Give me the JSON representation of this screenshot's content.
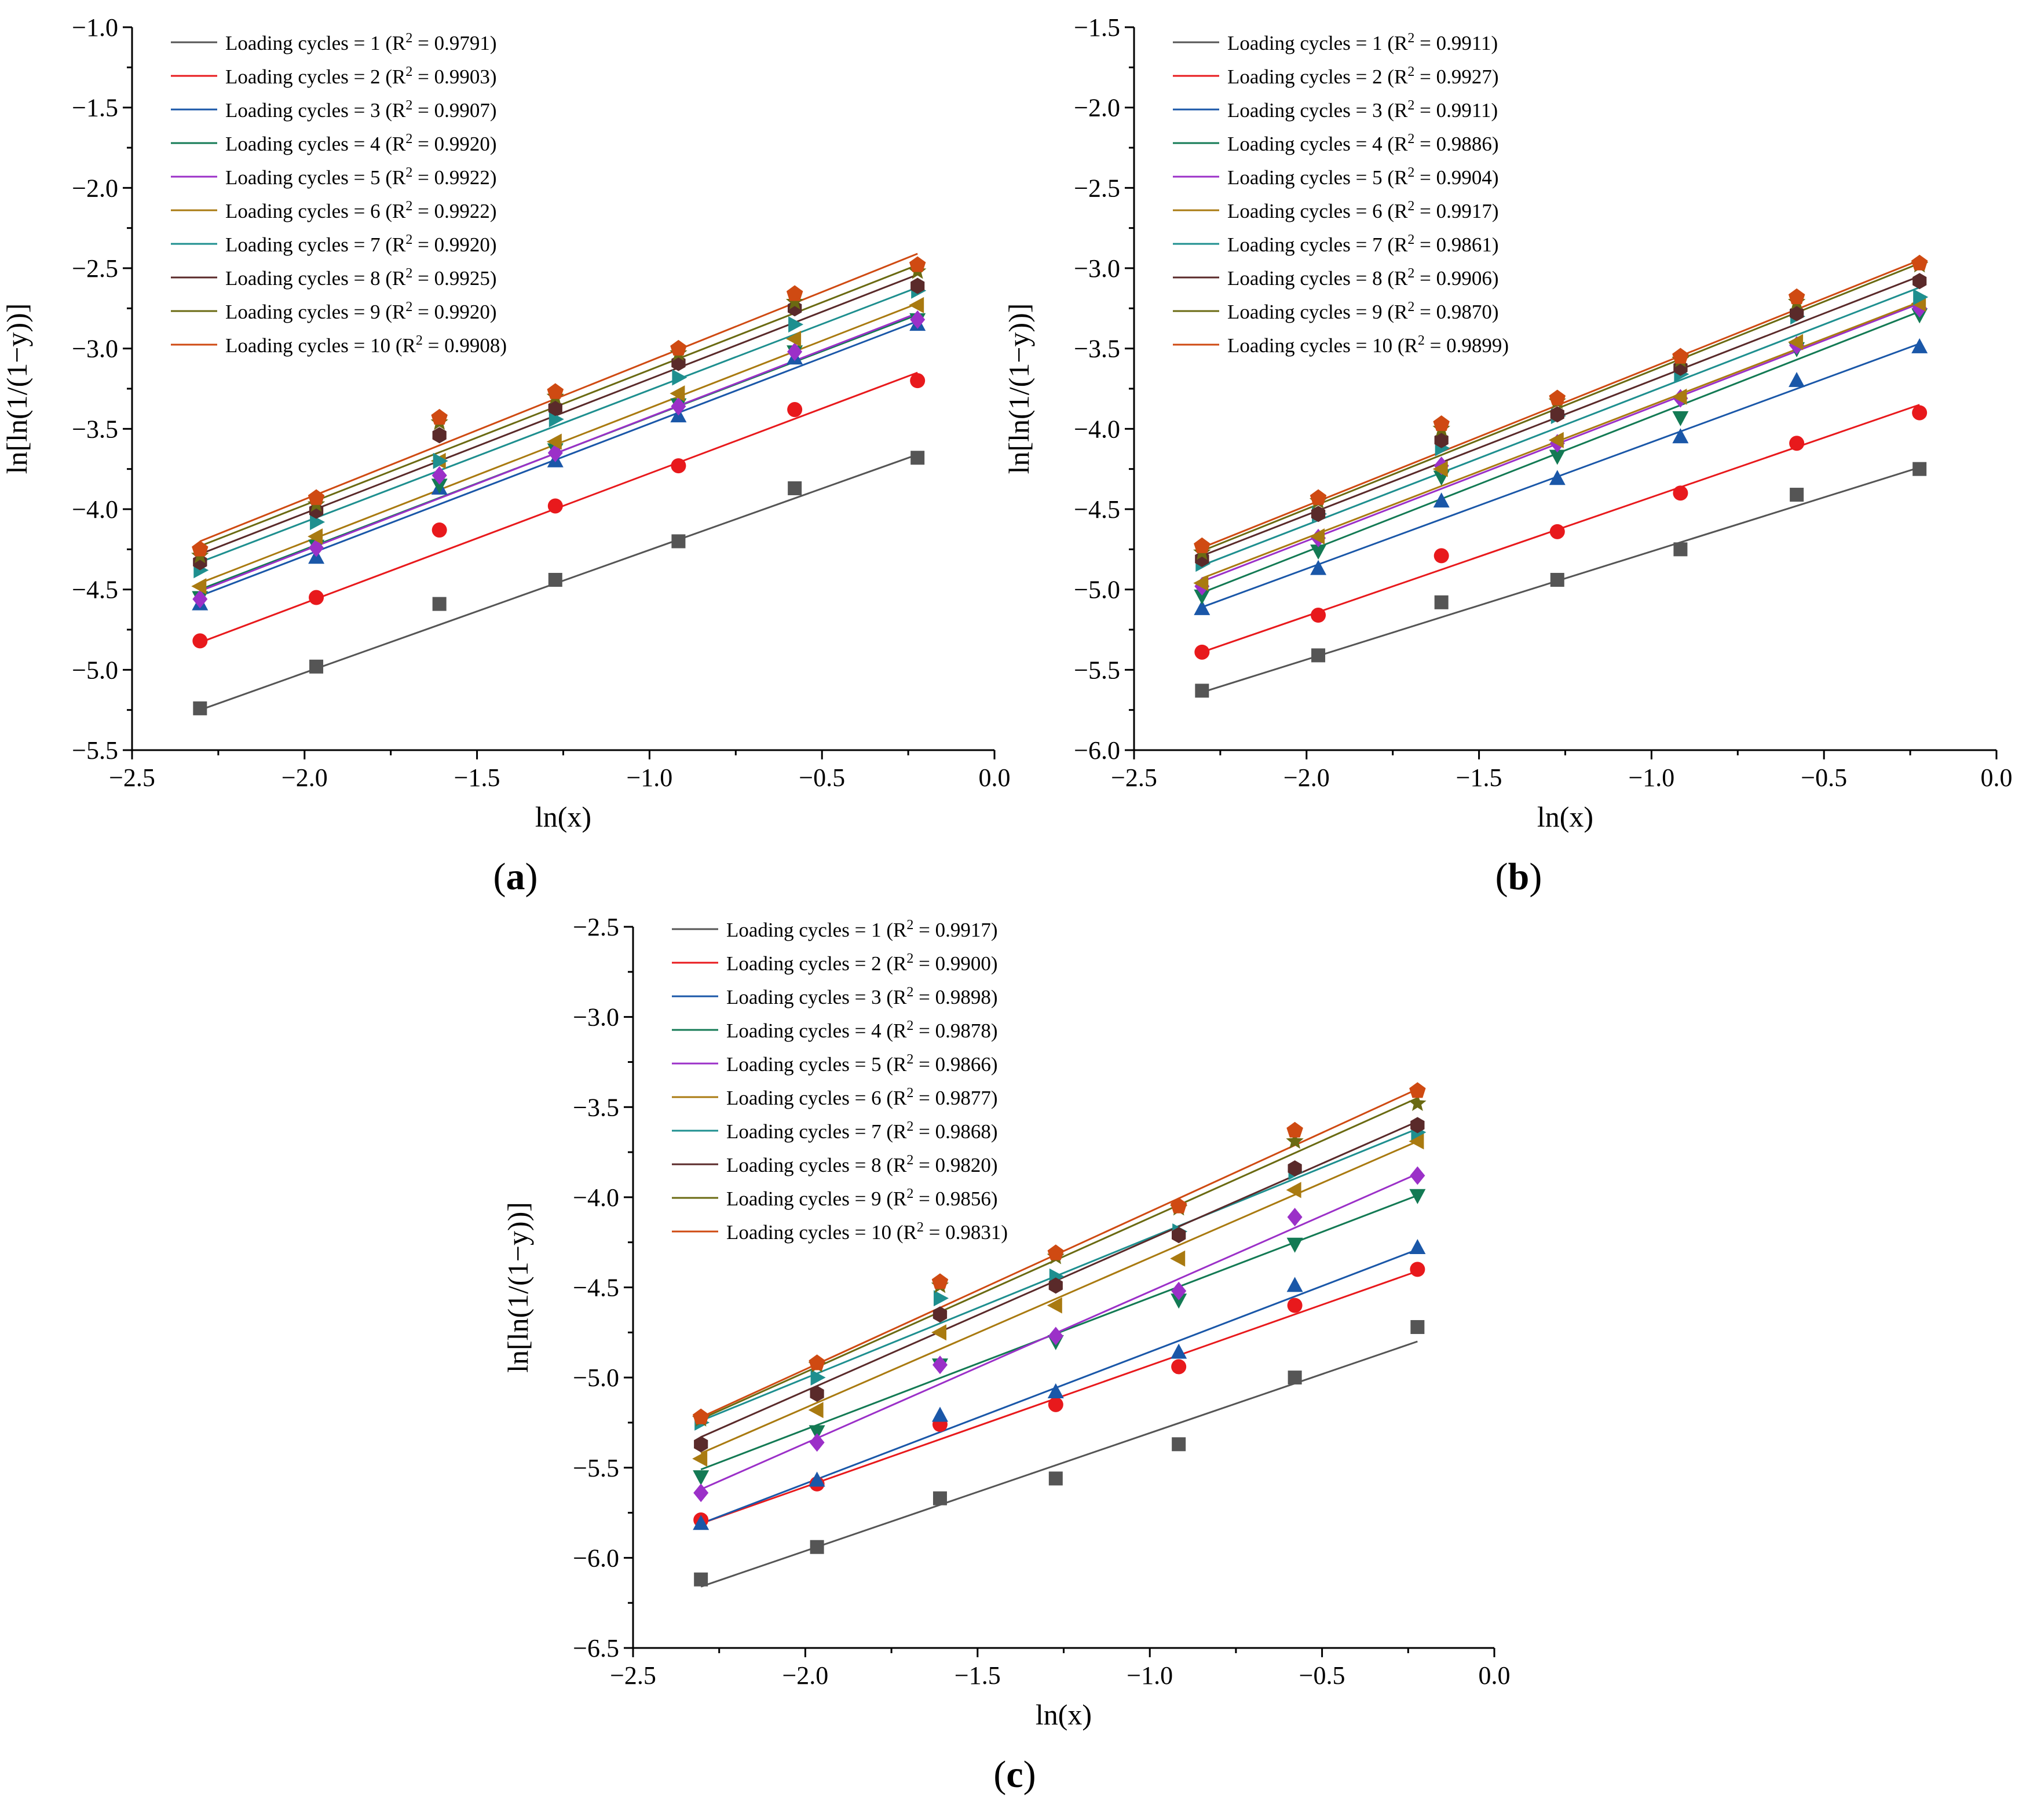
{
  "figure": {
    "x_common": [
      -2.303,
      -1.966,
      -1.609,
      -1.273,
      -0.916,
      -0.579,
      -0.223
    ],
    "xlabel": "ln(x)",
    "ylabel": "ln[ln(1/(1−y))]",
    "series_colors": [
      "#555555",
      "#e8191c",
      "#1a57a8",
      "#137a54",
      "#9b30c8",
      "#a97a10",
      "#1e8f8f",
      "#5a2a2a",
      "#6a6a12",
      "#cf4a12"
    ],
    "marker_colors": [
      "#555555",
      "#e8191c",
      "#1a57a8",
      "#137a54",
      "#9b30c8",
      "#a97a10",
      "#1e8f8f",
      "#5a2a2a",
      "#6a6a12",
      "#cf4a12"
    ],
    "marker_shapes": [
      "square",
      "circle",
      "triangle-up",
      "triangle-down",
      "diamond",
      "triangle-left",
      "triangle-right",
      "hexagon",
      "star",
      "pentagon"
    ]
  },
  "chart_data": [
    {
      "type": "scatter",
      "panel_label": "(a)",
      "xlabel": "ln(x)",
      "ylabel": "ln[ln(1/(1−y))]",
      "xlim": [
        -2.5,
        0.0
      ],
      "ylim": [
        -5.5,
        -1.0
      ],
      "xticks": [
        -2.5,
        -2.0,
        -1.5,
        -1.0,
        -0.5,
        0.0
      ],
      "yticks": [
        -5.5,
        -5.0,
        -4.5,
        -4.0,
        -3.5,
        -3.0,
        -2.5,
        -2.0,
        -1.5,
        -1.0
      ],
      "x": [
        -2.303,
        -1.966,
        -1.609,
        -1.273,
        -0.916,
        -0.579,
        -0.223
      ],
      "legend_position": "top-left",
      "series": [
        {
          "name": "Loading cycles = 1",
          "r2": "0.9791",
          "values": [
            -5.24,
            -4.98,
            -4.59,
            -4.44,
            -4.2,
            -3.87,
            -3.68
          ],
          "fit": [
            -5.25,
            -3.66
          ]
        },
        {
          "name": "Loading cycles = 2",
          "r2": "0.9903",
          "values": [
            -4.82,
            -4.55,
            -4.13,
            -3.98,
            -3.73,
            -3.38,
            -3.2
          ],
          "fit": [
            -4.83,
            -3.15
          ]
        },
        {
          "name": "Loading cycles = 3",
          "r2": "0.9907",
          "values": [
            -4.59,
            -4.3,
            -3.87,
            -3.7,
            -3.42,
            -3.06,
            -2.85
          ],
          "fit": [
            -4.54,
            -2.83
          ]
        },
        {
          "name": "Loading cycles = 4",
          "r2": "0.9920",
          "values": [
            -4.55,
            -4.23,
            -3.85,
            -3.63,
            -3.35,
            -3.02,
            -2.82
          ],
          "fit": [
            -4.5,
            -2.79
          ]
        },
        {
          "name": "Loading cycles = 5",
          "r2": "0.9922",
          "values": [
            -4.56,
            -4.24,
            -3.79,
            -3.65,
            -3.36,
            -3.02,
            -2.82
          ],
          "fit": [
            -4.51,
            -2.78
          ]
        },
        {
          "name": "Loading cycles = 6",
          "r2": "0.9922",
          "values": [
            -4.48,
            -4.17,
            -3.7,
            -3.58,
            -3.28,
            -2.94,
            -2.73
          ],
          "fit": [
            -4.46,
            -2.72
          ]
        },
        {
          "name": "Loading cycles = 7",
          "r2": "0.9920",
          "values": [
            -4.38,
            -4.08,
            -3.7,
            -3.44,
            -3.18,
            -2.85,
            -2.64
          ],
          "fit": [
            -4.33,
            -2.62
          ]
        },
        {
          "name": "Loading cycles = 8",
          "r2": "0.9925",
          "values": [
            -4.33,
            -4.01,
            -3.54,
            -3.37,
            -3.09,
            -2.75,
            -2.61
          ],
          "fit": [
            -4.28,
            -2.54
          ]
        },
        {
          "name": "Loading cycles = 9",
          "r2": "0.9920",
          "values": [
            -4.29,
            -3.97,
            -3.46,
            -3.3,
            -3.03,
            -2.71,
            -2.52
          ],
          "fit": [
            -4.23,
            -2.48
          ]
        },
        {
          "name": "Loading cycles = 10",
          "r2": "0.9908",
          "values": [
            -4.25,
            -3.93,
            -3.43,
            -3.27,
            -3.0,
            -2.66,
            -2.48
          ],
          "fit": [
            -4.2,
            -2.41
          ]
        }
      ]
    },
    {
      "type": "scatter",
      "panel_label": "(b)",
      "xlabel": "ln(x)",
      "ylabel": "ln[ln(1/(1−y))]",
      "xlim": [
        -2.5,
        0.0
      ],
      "ylim": [
        -6.0,
        -1.5
      ],
      "xticks": [
        -2.5,
        -2.0,
        -1.5,
        -1.0,
        -0.5,
        0.0
      ],
      "yticks": [
        -6.0,
        -5.5,
        -5.0,
        -4.5,
        -4.0,
        -3.5,
        -3.0,
        -2.5,
        -2.0,
        -1.5
      ],
      "x": [
        -2.303,
        -1.966,
        -1.609,
        -1.273,
        -0.916,
        -0.579,
        -0.223
      ],
      "legend_position": "top-left",
      "series": [
        {
          "name": "Loading cycles = 1",
          "r2": "0.9911",
          "values": [
            -5.63,
            -5.41,
            -5.08,
            -4.94,
            -4.75,
            -4.41,
            -4.25
          ],
          "fit": [
            -5.64,
            -4.24
          ]
        },
        {
          "name": "Loading cycles = 2",
          "r2": "0.9927",
          "values": [
            -5.39,
            -5.16,
            -4.79,
            -4.64,
            -4.4,
            -4.09,
            -3.9
          ],
          "fit": [
            -5.39,
            -3.85
          ]
        },
        {
          "name": "Loading cycles = 3",
          "r2": "0.9911",
          "values": [
            -5.12,
            -4.87,
            -4.45,
            -4.31,
            -4.05,
            -3.7,
            -3.49
          ],
          "fit": [
            -5.11,
            -3.47
          ]
        },
        {
          "name": "Loading cycles = 4",
          "r2": "0.9886",
          "values": [
            -5.04,
            -4.76,
            -4.3,
            -4.17,
            -3.93,
            -3.5,
            -3.29
          ],
          "fit": [
            -5.02,
            -3.27
          ]
        },
        {
          "name": "Loading cycles = 5",
          "r2": "0.9904",
          "values": [
            -4.98,
            -4.68,
            -4.23,
            -4.09,
            -3.81,
            -3.48,
            -3.25
          ],
          "fit": [
            -4.95,
            -3.22
          ]
        },
        {
          "name": "Loading cycles = 6",
          "r2": "0.9917",
          "values": [
            -4.96,
            -4.67,
            -4.25,
            -4.07,
            -3.8,
            -3.46,
            -3.22
          ],
          "fit": [
            -4.93,
            -3.21
          ]
        },
        {
          "name": "Loading cycles = 7",
          "r2": "0.9861",
          "values": [
            -4.84,
            -4.53,
            -4.12,
            -3.92,
            -3.66,
            -3.3,
            -3.18
          ],
          "fit": [
            -4.85,
            -3.12
          ]
        },
        {
          "name": "Loading cycles = 8",
          "r2": "0.9906",
          "values": [
            -4.81,
            -4.53,
            -4.07,
            -3.91,
            -3.62,
            -3.28,
            -3.08
          ],
          "fit": [
            -4.79,
            -3.05
          ]
        },
        {
          "name": "Loading cycles = 9",
          "r2": "0.9870",
          "values": [
            -4.77,
            -4.45,
            -4.0,
            -3.83,
            -3.57,
            -3.21,
            -2.98
          ],
          "fit": [
            -4.76,
            -2.97
          ]
        },
        {
          "name": "Loading cycles = 10",
          "r2": "0.9899",
          "values": [
            -4.73,
            -4.43,
            -3.97,
            -3.81,
            -3.55,
            -3.18,
            -2.97
          ],
          "fit": [
            -4.74,
            -2.95
          ]
        }
      ]
    },
    {
      "type": "scatter",
      "panel_label": "(c)",
      "xlabel": "ln(x)",
      "ylabel": "ln[ln(1/(1−y))]",
      "xlim": [
        -2.5,
        0.0
      ],
      "ylim": [
        -6.5,
        -2.5
      ],
      "xticks": [
        -2.5,
        -2.0,
        -1.5,
        -1.0,
        -0.5,
        0.0
      ],
      "yticks": [
        -6.5,
        -6.0,
        -5.5,
        -5.0,
        -4.5,
        -4.0,
        -3.5,
        -3.0,
        -2.5
      ],
      "x": [
        -2.303,
        -1.966,
        -1.609,
        -1.273,
        -0.916,
        -0.579,
        -0.223
      ],
      "legend_position": "top-left",
      "series": [
        {
          "name": "Loading cycles = 1",
          "r2": "0.9917",
          "values": [
            -6.12,
            -5.94,
            -5.67,
            -5.56,
            -5.37,
            -5.0,
            -4.72
          ],
          "fit": [
            -6.16,
            -4.8
          ]
        },
        {
          "name": "Loading cycles = 2",
          "r2": "0.9900",
          "values": [
            -5.79,
            -5.59,
            -5.26,
            -5.15,
            -4.94,
            -4.6,
            -4.4
          ],
          "fit": [
            -5.81,
            -4.41
          ]
        },
        {
          "name": "Loading cycles = 3",
          "r2": "0.9898",
          "values": [
            -5.81,
            -5.57,
            -5.21,
            -5.08,
            -4.86,
            -4.49,
            -4.28
          ],
          "fit": [
            -5.81,
            -4.29
          ]
        },
        {
          "name": "Loading cycles = 4",
          "r2": "0.9878",
          "values": [
            -5.55,
            -5.3,
            -4.93,
            -4.8,
            -4.57,
            -4.26,
            -3.99
          ],
          "fit": [
            -5.51,
            -3.99
          ]
        },
        {
          "name": "Loading cycles = 5",
          "r2": "0.9866",
          "values": [
            -5.64,
            -5.36,
            -4.93,
            -4.77,
            -4.52,
            -4.11,
            -3.88
          ],
          "fit": [
            -5.62,
            -3.87
          ]
        },
        {
          "name": "Loading cycles = 6",
          "r2": "0.9877",
          "values": [
            -5.45,
            -5.18,
            -4.75,
            -4.6,
            -4.34,
            -3.96,
            -3.69
          ],
          "fit": [
            -5.42,
            -3.69
          ]
        },
        {
          "name": "Loading cycles = 7",
          "r2": "0.9868",
          "values": [
            -5.25,
            -5.0,
            -4.56,
            -4.44,
            -4.19,
            -3.86,
            -3.64
          ],
          "fit": [
            -5.24,
            -3.62
          ]
        },
        {
          "name": "Loading cycles = 8",
          "r2": "0.9820",
          "values": [
            -5.37,
            -5.09,
            -4.65,
            -4.49,
            -4.21,
            -3.84,
            -3.6
          ],
          "fit": [
            -5.33,
            -3.58
          ]
        },
        {
          "name": "Loading cycles = 9",
          "r2": "0.9856",
          "values": [
            -5.23,
            -4.93,
            -4.49,
            -4.33,
            -4.06,
            -3.69,
            -3.48
          ],
          "fit": [
            -5.23,
            -3.45
          ]
        },
        {
          "name": "Loading cycles = 10",
          "r2": "0.9831",
          "values": [
            -5.22,
            -4.92,
            -4.47,
            -4.31,
            -4.05,
            -3.63,
            -3.41
          ],
          "fit": [
            -5.22,
            -3.4
          ]
        }
      ]
    }
  ]
}
